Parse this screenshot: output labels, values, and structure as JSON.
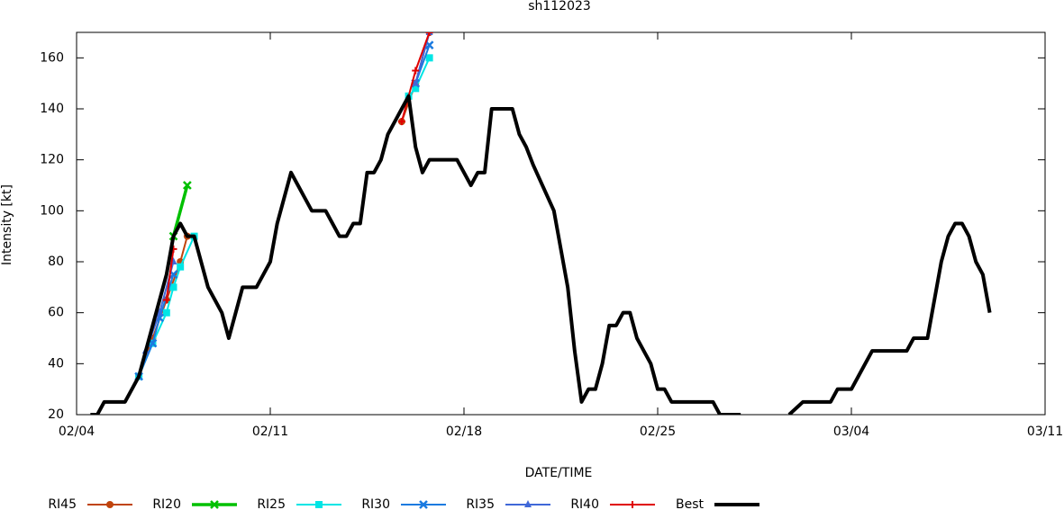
{
  "chart_data": {
    "type": "line",
    "title": "sh112023",
    "x_label": "DATE/TIME",
    "y_label": "Intensity [kt]",
    "xlim": [
      0,
      35
    ],
    "ylim": [
      20,
      170
    ],
    "xticks": [
      {
        "value": 0,
        "label": "02/04"
      },
      {
        "value": 7,
        "label": "02/11"
      },
      {
        "value": 14,
        "label": "02/18"
      },
      {
        "value": 21,
        "label": "02/25"
      },
      {
        "value": 28,
        "label": "03/04"
      },
      {
        "value": 35,
        "label": "03/11"
      }
    ],
    "yticks": [
      20,
      40,
      60,
      80,
      100,
      120,
      140,
      160
    ],
    "grid": false,
    "series": [
      {
        "name": "RI45",
        "color": "#c0440c",
        "marker": "circle",
        "width": 2,
        "x": [
          2.25,
          2.75,
          3.25,
          3.75,
          4.0,
          4.25,
          11.75,
          12.25,
          12.75
        ],
        "values": [
          35,
          50,
          65,
          80,
          90,
          null,
          135,
          150,
          170
        ]
      },
      {
        "name": "RI20",
        "color": "#00c000",
        "marker": "x",
        "width": 3.5,
        "x": [
          3.5,
          4.0
        ],
        "values": [
          90,
          110
        ]
      },
      {
        "name": "RI25",
        "color": "#00e5e5",
        "marker": "square",
        "width": 2,
        "x": [
          2.25,
          2.75,
          3.25,
          3.5,
          3.75,
          4.25,
          4.5,
          12.0,
          12.25,
          12.75
        ],
        "values": [
          35,
          48,
          60,
          70,
          78,
          90,
          null,
          145,
          148,
          160
        ]
      },
      {
        "name": "RI30",
        "color": "#1a7ae0",
        "marker": "x",
        "width": 2,
        "x": [
          2.25,
          2.75,
          3.0,
          3.5,
          3.75,
          12.25,
          12.75
        ],
        "values": [
          35,
          48,
          58,
          75,
          null,
          150,
          165
        ]
      },
      {
        "name": "RI35",
        "color": "#4068d8",
        "marker": "triangle",
        "width": 2,
        "x": [
          2.5,
          3.0,
          3.5,
          3.75,
          12.25,
          12.75
        ],
        "values": [
          45,
          60,
          80,
          null,
          150,
          170
        ]
      },
      {
        "name": "RI40",
        "color": "#e00000",
        "marker": "plus",
        "width": 2,
        "x": [
          3.25,
          3.5,
          3.75,
          11.75,
          12.25,
          12.75
        ],
        "values": [
          65,
          85,
          null,
          135,
          155,
          170
        ]
      },
      {
        "name": "Best",
        "color": "#000000",
        "marker": "none",
        "width": 4,
        "x": [
          0.5,
          0.75,
          1.0,
          1.75,
          2.0,
          2.25,
          2.5,
          2.75,
          3.0,
          3.25,
          3.5,
          3.75,
          4.0,
          4.25,
          4.5,
          4.75,
          5.0,
          5.25,
          5.5,
          5.75,
          6.0,
          6.5,
          6.75,
          7.0,
          7.25,
          7.5,
          7.75,
          8.0,
          8.25,
          8.5,
          9.0,
          9.25,
          9.5,
          9.75,
          10.0,
          10.25,
          10.5,
          10.75,
          11.0,
          11.25,
          11.5,
          11.75,
          12.0,
          12.25,
          12.5,
          12.75,
          13.75,
          14.0,
          14.25,
          14.5,
          14.75,
          15.0,
          15.75,
          16.0,
          16.25,
          16.5,
          16.75,
          17.0,
          17.25,
          17.5,
          17.75,
          18.0,
          18.25,
          18.5,
          18.75,
          19.0,
          19.25,
          19.5,
          19.75,
          20.0,
          20.25,
          20.5,
          20.75,
          21.0,
          21.25,
          21.5,
          21.75,
          23.0,
          23.25,
          24.0,
          25.0,
          25.75,
          26.25,
          27.25,
          27.5,
          28.0,
          28.25,
          28.75,
          30.0,
          30.25,
          30.75,
          31.0,
          31.25,
          31.5,
          31.75,
          32.0,
          32.25,
          32.5,
          32.75,
          33.0
        ],
        "values": [
          20,
          20,
          25,
          25,
          30,
          35,
          45,
          55,
          65,
          75,
          90,
          95,
          90,
          90,
          80,
          70,
          65,
          60,
          50,
          60,
          70,
          70,
          75,
          80,
          95,
          105,
          115,
          110,
          105,
          100,
          100,
          95,
          90,
          90,
          95,
          95,
          115,
          115,
          120,
          130,
          135,
          140,
          145,
          125,
          115,
          120,
          120,
          115,
          110,
          115,
          115,
          140,
          140,
          130,
          125,
          118,
          112,
          106,
          100,
          85,
          70,
          45,
          25,
          30,
          30,
          40,
          55,
          55,
          60,
          60,
          50,
          45,
          40,
          30,
          30,
          25,
          25,
          25,
          20,
          20,
          null,
          20,
          25,
          25,
          30,
          30,
          35,
          45,
          45,
          50,
          50,
          65,
          80,
          90,
          95,
          95,
          90,
          80,
          75,
          60
        ]
      }
    ]
  }
}
